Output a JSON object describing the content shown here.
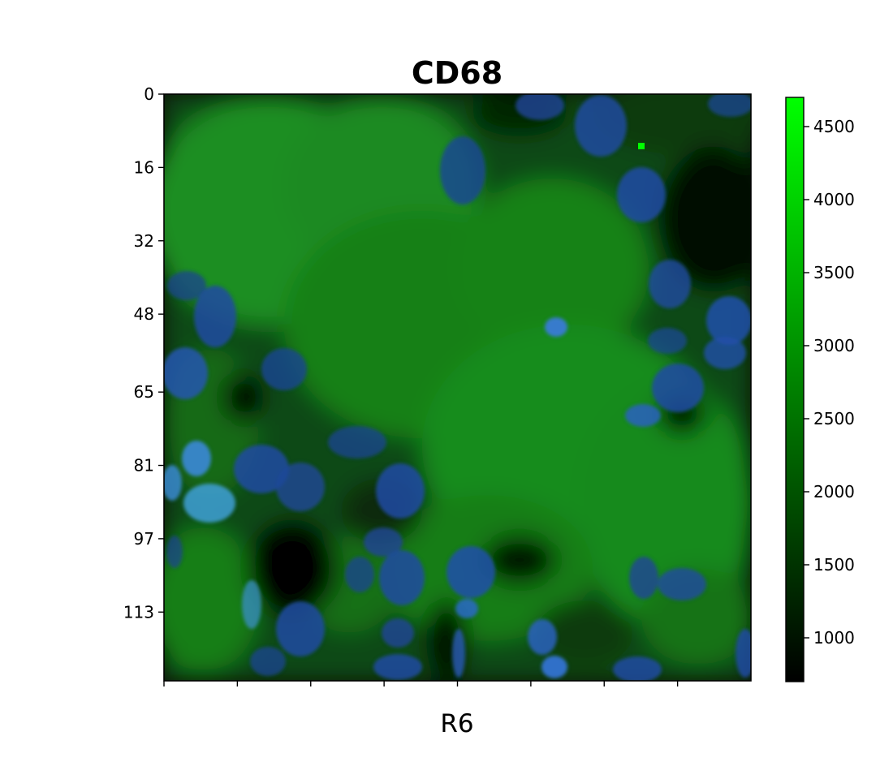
{
  "chart_data": {
    "type": "heatmap",
    "title": "CD68",
    "xlabel": "R6",
    "ylabel": "",
    "image_channels": [
      "CD68 (green)",
      "nuclear stain (blue)"
    ],
    "image_extent": {
      "x": [
        0,
        128
      ],
      "y": [
        0,
        128
      ]
    },
    "y_ticks": [
      0,
      16,
      32,
      48,
      65,
      81,
      97,
      113
    ],
    "x_ticks_count": 8,
    "x_tick_labels_shown": false,
    "colorbar": {
      "range": [
        700,
        4700
      ],
      "ticks": [
        1000,
        1500,
        2000,
        2500,
        3000,
        3500,
        4000,
        4500
      ],
      "colormap": [
        "#000000",
        "#00ff00"
      ]
    },
    "colors": {
      "tissue_green": "#1f8a1f",
      "bright_green": "#00ff00",
      "nucleus_blue": "#1f4fa8",
      "background": "#000000"
    }
  }
}
